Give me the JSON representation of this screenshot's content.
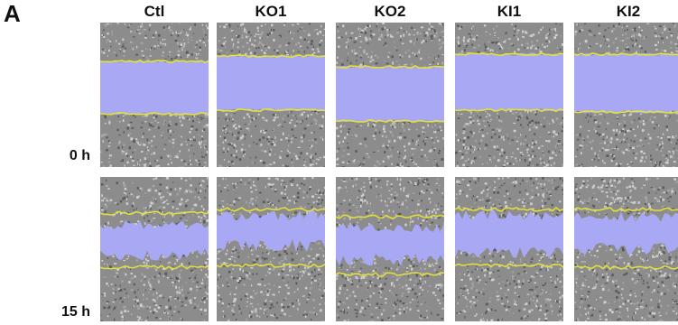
{
  "figure": {
    "panel_label": "A",
    "columns": [
      "Ctl",
      "KO1",
      "KO2",
      "KI1",
      "KI2"
    ],
    "rows": [
      "0 h",
      "15 h"
    ]
  },
  "colors": {
    "cell_background": "#8c8c8c",
    "wound_fill": "#a8a8f4",
    "wound_border": "#e4e23a",
    "label_text": "#111111"
  },
  "images": [
    {
      "column": "Ctl",
      "time": "0 h",
      "content": "phase-contrast-micrograph-with-wide-scratch-wound"
    },
    {
      "column": "KO1",
      "time": "0 h",
      "content": "phase-contrast-micrograph-with-wide-scratch-wound"
    },
    {
      "column": "KO2",
      "time": "0 h",
      "content": "phase-contrast-micrograph-with-wide-scratch-wound"
    },
    {
      "column": "KI1",
      "time": "0 h",
      "content": "phase-contrast-micrograph-with-wide-scratch-wound"
    },
    {
      "column": "KI2",
      "time": "0 h",
      "content": "phase-contrast-micrograph-with-wide-scratch-wound"
    },
    {
      "column": "Ctl",
      "time": "15 h",
      "content": "phase-contrast-micrograph-with-partially-closed-wound"
    },
    {
      "column": "KO1",
      "time": "15 h",
      "content": "phase-contrast-micrograph-with-partially-closed-wound"
    },
    {
      "column": "KO2",
      "time": "15 h",
      "content": "phase-contrast-micrograph-with-partially-closed-wound"
    },
    {
      "column": "KI1",
      "time": "15 h",
      "content": "phase-contrast-micrograph-with-partially-closed-wound"
    },
    {
      "column": "KI2",
      "time": "15 h",
      "content": "phase-contrast-micrograph-with-partially-closed-wound"
    }
  ]
}
